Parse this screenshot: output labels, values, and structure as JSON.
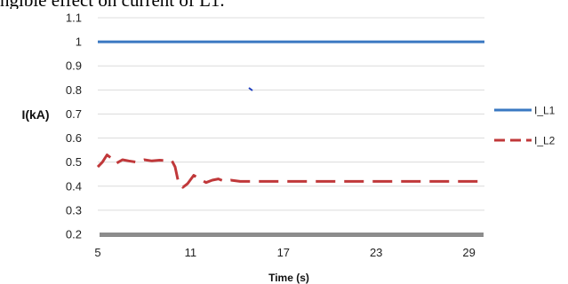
{
  "caption_fragment": "ngible effect on current of L1.",
  "chart_data": {
    "type": "line",
    "xlabel": "Time (s)",
    "ylabel": "I(kA)",
    "xlim": [
      5,
      30
    ],
    "ylim": [
      0.2,
      1.1
    ],
    "x_ticks": [
      5,
      11,
      17,
      23,
      29
    ],
    "y_ticks": [
      0.2,
      0.3,
      0.4,
      0.5,
      0.6,
      0.7,
      0.8,
      0.9,
      1,
      1.1
    ],
    "grid": "horizontal",
    "legend_position": "right",
    "series": [
      {
        "name": "I_L1",
        "color": "#3a78c2",
        "dash": "solid",
        "points": [
          [
            5,
            1.0
          ],
          [
            30,
            1.0
          ]
        ]
      },
      {
        "name": "I_L2",
        "color": "#c0383a",
        "dash": "dashed",
        "points": [
          [
            5.0,
            0.48
          ],
          [
            5.3,
            0.5
          ],
          [
            5.6,
            0.53
          ],
          [
            5.9,
            0.515
          ],
          [
            6.2,
            0.495
          ],
          [
            6.6,
            0.51
          ],
          [
            7.0,
            0.505
          ],
          [
            7.5,
            0.5
          ],
          [
            8.0,
            0.51
          ],
          [
            8.5,
            0.505
          ],
          [
            9.0,
            0.508
          ],
          [
            9.5,
            0.506
          ],
          [
            9.8,
            0.505
          ],
          [
            10.0,
            0.48
          ],
          [
            10.2,
            0.42
          ],
          [
            10.5,
            0.395
          ],
          [
            10.8,
            0.41
          ],
          [
            11.2,
            0.445
          ],
          [
            11.6,
            0.43
          ],
          [
            12.0,
            0.415
          ],
          [
            12.4,
            0.425
          ],
          [
            12.8,
            0.43
          ],
          [
            13.2,
            0.42
          ],
          [
            13.6,
            0.425
          ],
          [
            14.2,
            0.42
          ],
          [
            15.0,
            0.42
          ],
          [
            30.0,
            0.42
          ]
        ]
      }
    ]
  }
}
